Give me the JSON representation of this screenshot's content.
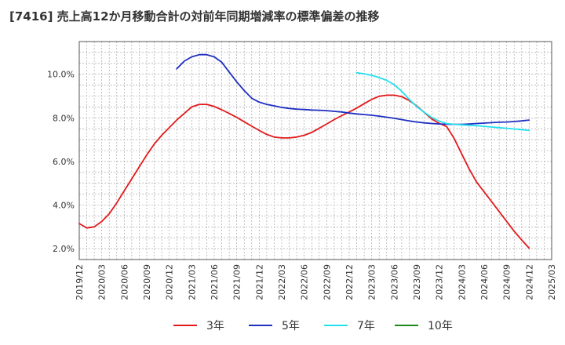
{
  "chart_data": {
    "type": "line",
    "title": "[7416]  売上高12か月移動合計の対前年同期増減率の標準偏差の推移",
    "xlabel": "",
    "ylabel": "",
    "ylim": [
      1.5,
      11.5
    ],
    "y_ticks": [
      "2.0%",
      "4.0%",
      "6.0%",
      "8.0%",
      "10.0%"
    ],
    "y_tick_values": [
      2,
      4,
      6,
      8,
      10
    ],
    "x_ticks": [
      "2019/12",
      "2020/03",
      "2020/06",
      "2020/09",
      "2020/12",
      "2021/03",
      "2021/06",
      "2021/09",
      "2021/12",
      "2022/03",
      "2022/06",
      "2022/09",
      "2022/12",
      "2023/03",
      "2023/06",
      "2023/09",
      "2023/12",
      "2024/03",
      "2024/06",
      "2024/09",
      "2024/12",
      "2025/03"
    ],
    "grid": true,
    "legend_position": "bottom",
    "series": [
      {
        "name": "3年",
        "color": "#e31a1c",
        "x": [
          "2019/12",
          "2020/01",
          "2020/02",
          "2020/03",
          "2020/04",
          "2020/05",
          "2020/06",
          "2020/07",
          "2020/08",
          "2020/09",
          "2020/10",
          "2020/11",
          "2020/12",
          "2021/01",
          "2021/02",
          "2021/03",
          "2021/04",
          "2021/05",
          "2021/06",
          "2021/07",
          "2021/08",
          "2021/09",
          "2021/10",
          "2021/11",
          "2021/12",
          "2022/01",
          "2022/02",
          "2022/03",
          "2022/04",
          "2022/05",
          "2022/06",
          "2022/07",
          "2022/08",
          "2022/09",
          "2022/10",
          "2022/11",
          "2022/12",
          "2023/01",
          "2023/02",
          "2023/03",
          "2023/04",
          "2023/05",
          "2023/06",
          "2023/07",
          "2023/08",
          "2023/09",
          "2023/10",
          "2023/11",
          "2023/12",
          "2024/01",
          "2024/02",
          "2024/03",
          "2024/04",
          "2024/05",
          "2024/06",
          "2024/07",
          "2024/08",
          "2024/09",
          "2024/10",
          "2024/11",
          "2024/12"
        ],
        "values": [
          3.15,
          2.95,
          3.0,
          3.25,
          3.6,
          4.1,
          4.65,
          5.2,
          5.75,
          6.3,
          6.8,
          7.2,
          7.55,
          7.9,
          8.2,
          8.5,
          8.62,
          8.62,
          8.52,
          8.37,
          8.2,
          8.02,
          7.82,
          7.62,
          7.42,
          7.24,
          7.12,
          7.08,
          7.08,
          7.12,
          7.2,
          7.33,
          7.52,
          7.72,
          7.92,
          8.1,
          8.27,
          8.45,
          8.65,
          8.85,
          8.99,
          9.04,
          9.04,
          8.97,
          8.8,
          8.55,
          8.25,
          7.95,
          7.75,
          7.6,
          7.05,
          6.35,
          5.65,
          5.05,
          4.6,
          4.15,
          3.7,
          3.25,
          2.8,
          2.4,
          2.02
        ]
      },
      {
        "name": "5年",
        "color": "#1f2fc1",
        "x": [
          "2021/01",
          "2021/02",
          "2021/03",
          "2021/04",
          "2021/05",
          "2021/06",
          "2021/07",
          "2021/08",
          "2021/09",
          "2021/10",
          "2021/11",
          "2021/12",
          "2022/01",
          "2022/02",
          "2022/03",
          "2022/04",
          "2022/05",
          "2022/06",
          "2022/07",
          "2022/08",
          "2022/09",
          "2022/10",
          "2022/11",
          "2022/12",
          "2023/01",
          "2023/02",
          "2023/03",
          "2023/04",
          "2023/05",
          "2023/06",
          "2023/07",
          "2023/08",
          "2023/09",
          "2023/10",
          "2023/11",
          "2023/12",
          "2024/01",
          "2024/02",
          "2024/03",
          "2024/04",
          "2024/05",
          "2024/06",
          "2024/07",
          "2024/08",
          "2024/09",
          "2024/10",
          "2024/11",
          "2024/12"
        ],
        "values": [
          10.25,
          10.6,
          10.8,
          10.9,
          10.9,
          10.8,
          10.55,
          10.1,
          9.65,
          9.25,
          8.9,
          8.72,
          8.62,
          8.55,
          8.48,
          8.43,
          8.4,
          8.38,
          8.36,
          8.35,
          8.33,
          8.3,
          8.27,
          8.22,
          8.18,
          8.15,
          8.12,
          8.08,
          8.03,
          7.98,
          7.92,
          7.86,
          7.81,
          7.77,
          7.74,
          7.72,
          7.71,
          7.7,
          7.7,
          7.72,
          7.74,
          7.76,
          7.78,
          7.8,
          7.81,
          7.83,
          7.86,
          7.9
        ]
      },
      {
        "name": "7年",
        "color": "#22e0f0",
        "x": [
          "2023/01",
          "2023/02",
          "2023/03",
          "2023/04",
          "2023/05",
          "2023/06",
          "2023/07",
          "2023/08",
          "2023/09",
          "2023/10",
          "2023/11",
          "2023/12",
          "2024/01",
          "2024/02",
          "2024/03",
          "2024/04",
          "2024/05",
          "2024/06",
          "2024/07",
          "2024/08",
          "2024/09",
          "2024/10",
          "2024/11",
          "2024/12"
        ],
        "values": [
          10.07,
          10.02,
          9.95,
          9.85,
          9.72,
          9.52,
          9.22,
          8.85,
          8.52,
          8.25,
          8.02,
          7.85,
          7.74,
          7.7,
          7.68,
          7.66,
          7.64,
          7.61,
          7.58,
          7.55,
          7.52,
          7.49,
          7.46,
          7.42
        ]
      },
      {
        "name": "10年",
        "color": "#1a8a1a",
        "x": [],
        "values": []
      }
    ]
  }
}
